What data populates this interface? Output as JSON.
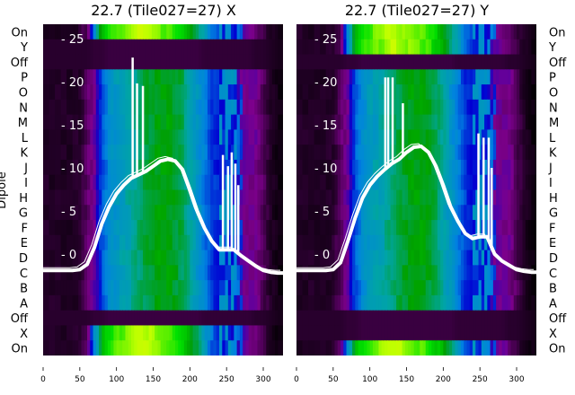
{
  "chart_data": {
    "type": "heatmap",
    "ylabel": "Dipole",
    "row_labels": [
      "On",
      "Y",
      "Off",
      "P",
      "O",
      "N",
      "M",
      "L",
      "K",
      "J",
      "I",
      "H",
      "G",
      "F",
      "E",
      "D",
      "C",
      "B",
      "A",
      "Off",
      "X",
      "On"
    ],
    "x_ticks": [
      0,
      50,
      100,
      150,
      200,
      250,
      300
    ],
    "x_range": [
      0,
      327
    ],
    "inner_y_ticks": [
      0,
      5,
      10,
      15,
      20,
      25
    ],
    "profile_step": 10,
    "profiles": {
      "dipole": [
        0.08,
        0.08,
        0.08,
        0.08,
        0.08,
        0.09,
        0.16,
        0.22,
        0.36,
        0.42,
        0.46,
        0.48,
        0.5,
        0.53,
        0.56,
        0.58,
        0.6,
        0.6,
        0.58,
        0.55,
        0.5,
        0.45,
        0.4,
        0.34,
        0.32,
        0.32,
        0.32,
        0.22,
        0.2,
        0.2,
        0.15,
        0.08,
        0.04,
        0.02
      ],
      "on": [
        0.08,
        0.08,
        0.08,
        0.08,
        0.08,
        0.09,
        0.16,
        0.42,
        0.62,
        0.7,
        0.74,
        0.76,
        0.78,
        0.8,
        0.8,
        0.77,
        0.75,
        0.74,
        0.72,
        0.68,
        0.62,
        0.55,
        0.46,
        0.38,
        0.33,
        0.32,
        0.3,
        0.24,
        0.2,
        0.18,
        0.12,
        0.08,
        0.04,
        0.02
      ],
      "off": [
        0.1,
        0.1,
        0.1,
        0.1,
        0.1,
        0.1,
        0.1,
        0.11,
        0.11,
        0.12,
        0.12,
        0.12,
        0.12,
        0.12,
        0.12,
        0.12,
        0.12,
        0.12,
        0.12,
        0.12,
        0.12,
        0.12,
        0.11,
        0.11,
        0.11,
        0.11,
        0.11,
        0.11,
        0.11,
        0.1,
        0.1,
        0.08,
        0.06,
        0.05
      ]
    },
    "panels": [
      {
        "title": "22.7 (Tile027=27) X",
        "row_types": [
          "on",
          "off",
          "off",
          "dipole",
          "dipole",
          "dipole",
          "dipole",
          "dipole",
          "dipole",
          "dipole",
          "dipole",
          "dipole",
          "dipole",
          "dipole",
          "dipole",
          "dipole",
          "dipole",
          "dipole",
          "dipole",
          "off",
          "on",
          "on"
        ],
        "curve": [
          -1.9,
          -1.9,
          -1.9,
          -1.9,
          -1.9,
          -1.8,
          -1.2,
          0.8,
          3.5,
          5.5,
          7,
          8,
          8.8,
          9.2,
          9.6,
          10.2,
          10.8,
          11,
          10.8,
          9.8,
          7.5,
          5,
          3,
          1.5,
          0.5,
          0.5,
          0.5,
          -0.2,
          -0.8,
          -1.4,
          -1.9,
          -2.1,
          -2.2,
          -2.2
        ],
        "spikes": [
          [
            122,
            22.8
          ],
          [
            128,
            19.8
          ],
          [
            136,
            19.5
          ],
          [
            245,
            11.5
          ],
          [
            252,
            10.2
          ],
          [
            257,
            11.8
          ],
          [
            262,
            10.5
          ],
          [
            266,
            8
          ]
        ]
      },
      {
        "title": "22.7 (Tile027=27) Y",
        "row_types": [
          "on",
          "on",
          "off",
          "dipole",
          "dipole",
          "dipole",
          "dipole",
          "dipole",
          "dipole",
          "dipole",
          "dipole",
          "dipole",
          "dipole",
          "dipole",
          "dipole",
          "dipole",
          "dipole",
          "dipole",
          "dipole",
          "off",
          "off",
          "on"
        ],
        "curve": [
          -1.9,
          -1.9,
          -1.9,
          -1.9,
          -1.9,
          -1.8,
          -1.0,
          1.5,
          4.2,
          6.5,
          8,
          9,
          9.8,
          10.5,
          11,
          11.8,
          12.4,
          12.5,
          11.8,
          10.2,
          8,
          5.5,
          3.8,
          2.4,
          1.8,
          2,
          2,
          0,
          -0.8,
          -1.3,
          -1.8,
          -2,
          -2.1,
          -2.1
        ],
        "spikes": [
          [
            121,
            20.5
          ],
          [
            125,
            20.5
          ],
          [
            131,
            20.5
          ],
          [
            145,
            17.5
          ],
          [
            248,
            14
          ],
          [
            255,
            13.5
          ],
          [
            262,
            13.5
          ],
          [
            266,
            10
          ]
        ]
      }
    ]
  }
}
